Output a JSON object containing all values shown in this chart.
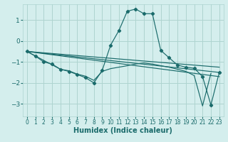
{
  "xlabel": "Humidex (Indice chaleur)",
  "bg_color": "#d4eeed",
  "grid_color": "#aed4d0",
  "line_color": "#1a6b6b",
  "xlim": [
    -0.5,
    23.5
  ],
  "ylim": [
    -3.6,
    1.75
  ],
  "yticks": [
    -3,
    -2,
    -1,
    0,
    1
  ],
  "xticks": [
    0,
    1,
    2,
    3,
    4,
    5,
    6,
    7,
    8,
    9,
    10,
    11,
    12,
    13,
    14,
    15,
    16,
    17,
    18,
    19,
    20,
    21,
    22,
    23
  ],
  "curve_x": [
    0,
    1,
    2,
    3,
    4,
    5,
    6,
    7,
    8,
    9,
    10,
    11,
    12,
    13,
    14,
    15,
    16,
    17,
    18,
    19,
    20,
    21,
    22,
    23
  ],
  "curve_y": [
    -0.5,
    -0.72,
    -1.0,
    -1.1,
    -1.35,
    -1.45,
    -1.6,
    -1.75,
    -2.0,
    -1.4,
    -0.2,
    0.5,
    1.42,
    1.52,
    1.3,
    1.3,
    -0.45,
    -0.8,
    -1.15,
    -1.25,
    -1.3,
    -1.7,
    -3.05,
    -1.5
  ],
  "line1_x": [
    0,
    23
  ],
  "line1_y": [
    -0.5,
    -1.25
  ],
  "line2_x": [
    0,
    23
  ],
  "line2_y": [
    -0.5,
    -1.5
  ],
  "line3_x": [
    0,
    23
  ],
  "line3_y": [
    -0.5,
    -1.7
  ],
  "line4_x": [
    0,
    4,
    5,
    6,
    7,
    8,
    9,
    10,
    11,
    12,
    13,
    14,
    15,
    16,
    17,
    18,
    19,
    20,
    21,
    22
  ],
  "line4_y": [
    -0.5,
    -1.35,
    -1.42,
    -1.58,
    -1.68,
    -1.88,
    -1.45,
    -1.32,
    -1.25,
    -1.18,
    -1.1,
    -1.05,
    -1.1,
    -1.18,
    -1.25,
    -1.35,
    -1.45,
    -1.65,
    -3.1,
    -1.55
  ]
}
